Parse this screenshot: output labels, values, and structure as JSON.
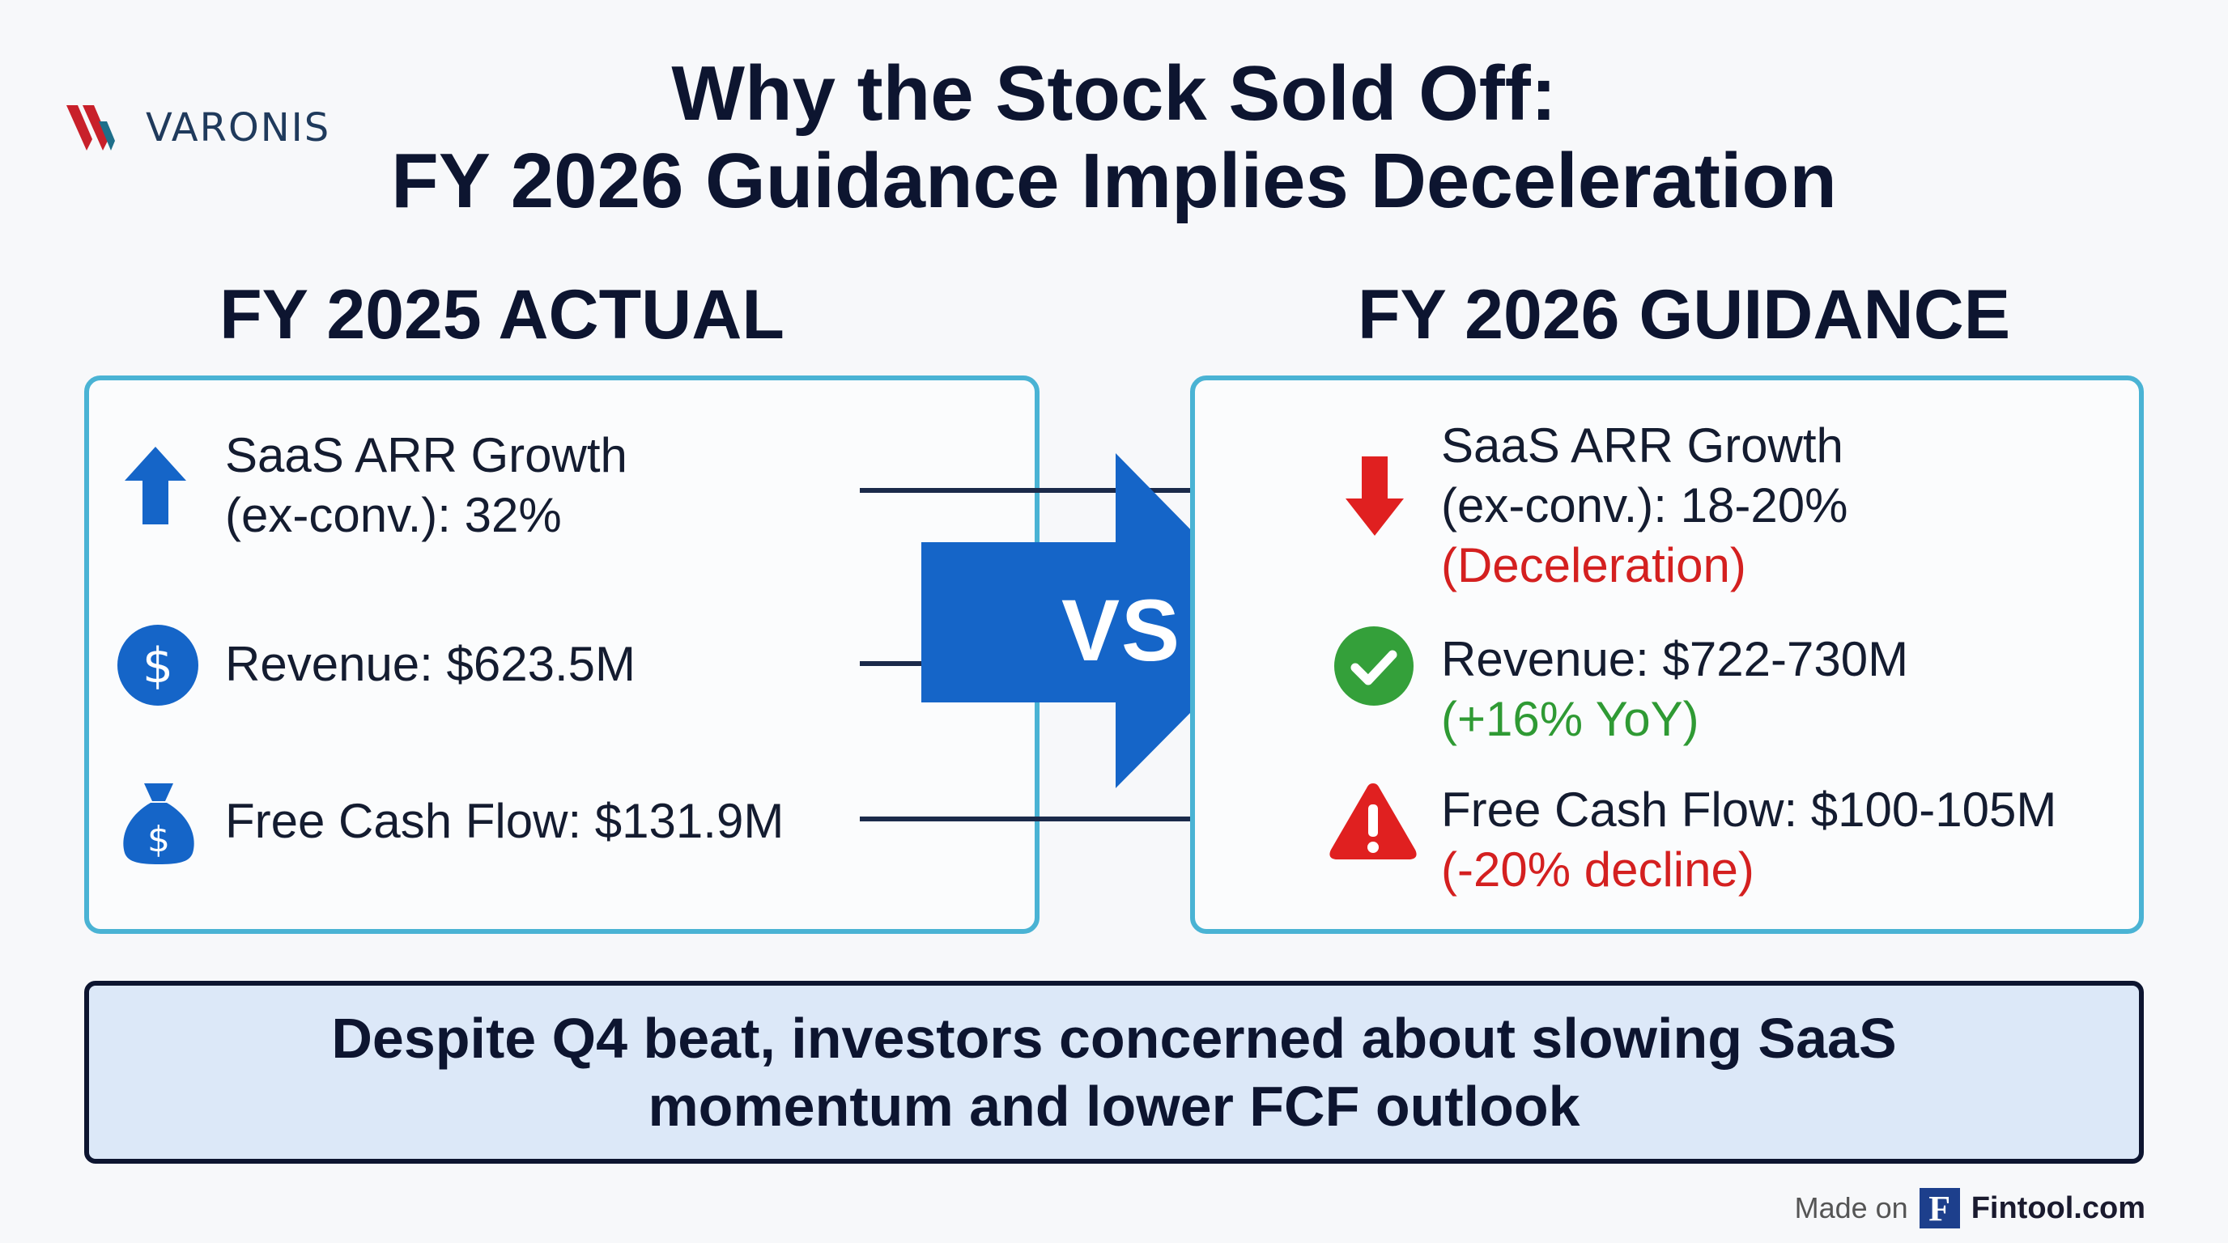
{
  "brand": {
    "name": "VARONIS",
    "accent_red": "#c8202a",
    "accent_teal": "#1e6f8a"
  },
  "title": {
    "line1": "Why the Stock Sold Off:",
    "line2": "FY 2026 Guidance Implies Deceleration"
  },
  "left": {
    "heading": "FY 2025 ACTUAL",
    "items": [
      {
        "icon": "up-arrow-icon",
        "line1": "SaaS ARR Growth",
        "line2": "(ex-conv.): 32%"
      },
      {
        "icon": "dollar-circle-icon",
        "line1": "Revenue: $623.5M"
      },
      {
        "icon": "money-bag-icon",
        "line1": "Free Cash Flow: $131.9M"
      }
    ]
  },
  "comparison_label": "VS",
  "right": {
    "heading": "FY 2026 GUIDANCE",
    "items": [
      {
        "icon": "down-arrow-icon",
        "line1": "SaaS ARR Growth",
        "line2": "(ex-conv.): 18-20%",
        "note": "(Deceleration)"
      },
      {
        "icon": "check-circle-icon",
        "line1": "Revenue: $722-730M",
        "note": "(+16% YoY)"
      },
      {
        "icon": "warning-icon",
        "line1": "Free Cash Flow: $100-105M",
        "note": "(-20% decline)"
      }
    ]
  },
  "banner": {
    "line1": "Despite Q4 beat, investors concerned about slowing SaaS",
    "line2": "momentum and lower FCF outlook"
  },
  "footer": {
    "made_on": "Made on",
    "logo_letter": "F",
    "brand": "Fintool.com"
  },
  "colors": {
    "blue": "#1565c8",
    "red": "#e02020",
    "green": "#34a03a",
    "panel_border": "#4ab3d4"
  }
}
